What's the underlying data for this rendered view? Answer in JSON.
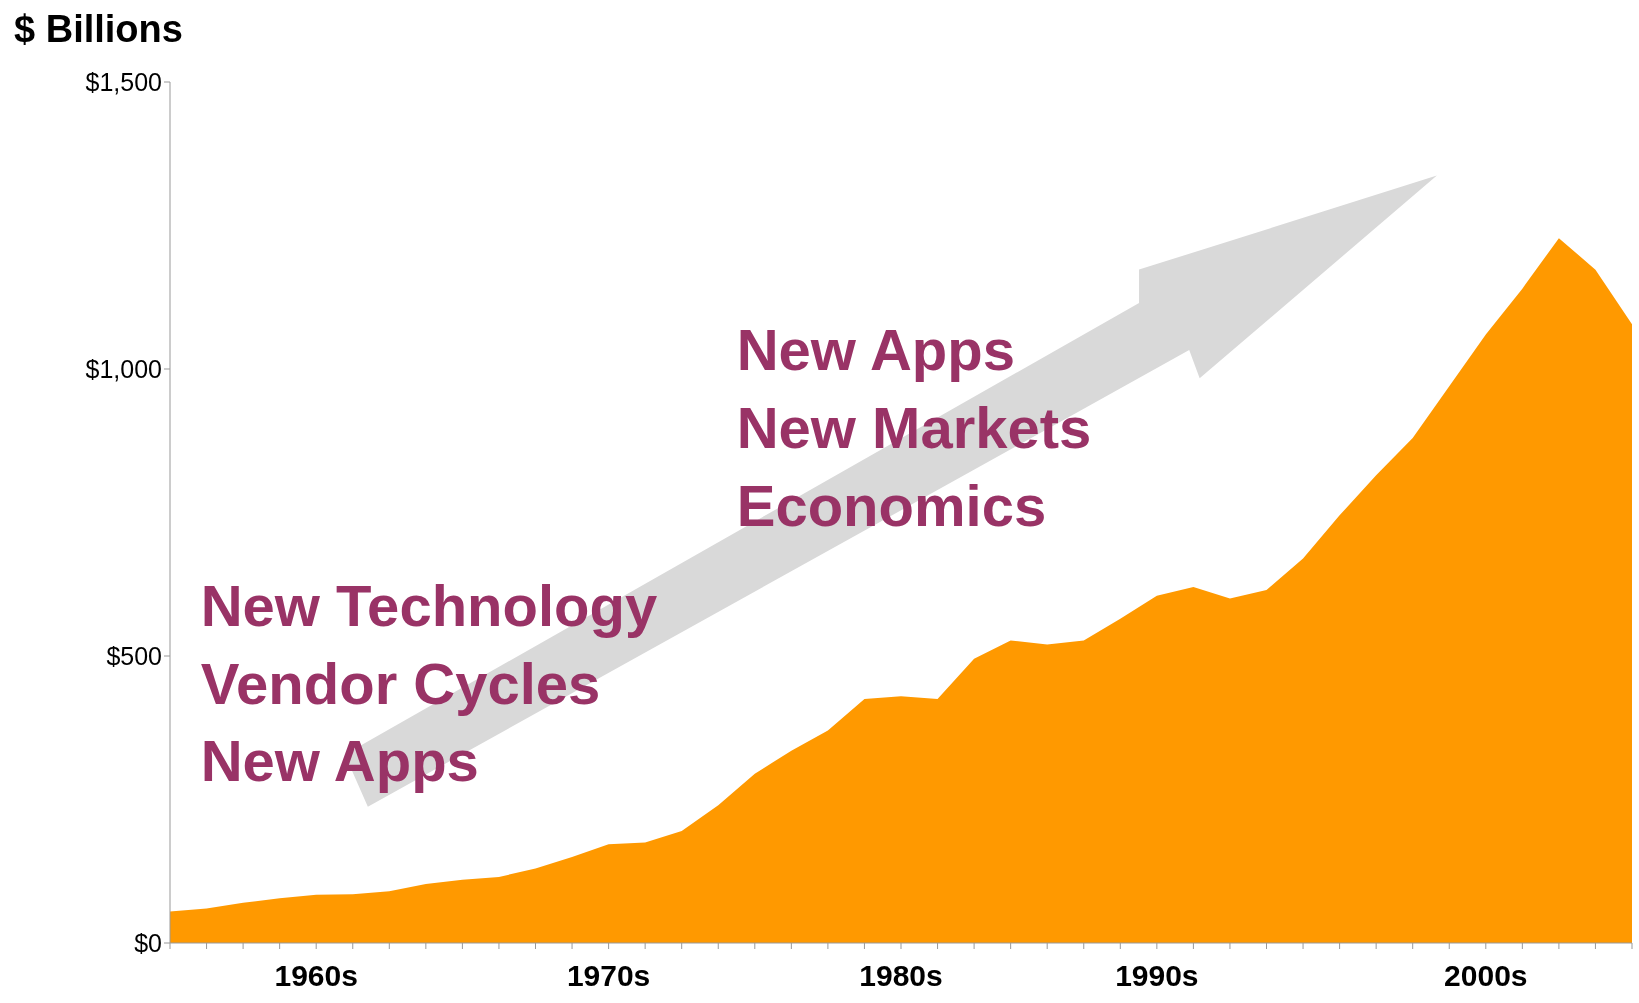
{
  "chart_data": {
    "type": "area",
    "ylabel": "$ Billions",
    "annotations": [
      "New Technology",
      "Vendor Cycles",
      "New Apps",
      "New Apps",
      "New Markets",
      "Economics"
    ],
    "categories": [
      null,
      null,
      null,
      null,
      "1960s",
      null,
      null,
      null,
      null,
      null,
      null,
      null,
      "1970s",
      null,
      null,
      null,
      null,
      null,
      null,
      null,
      "1980s",
      null,
      null,
      null,
      null,
      null,
      null,
      "1990s",
      null,
      null,
      null,
      null,
      null,
      null,
      null,
      null,
      "2000s",
      null,
      null,
      null,
      null
    ],
    "values": [
      55,
      60,
      70,
      78,
      84,
      85,
      90,
      103,
      110,
      115,
      130,
      150,
      172,
      175,
      195,
      240,
      295,
      335,
      370,
      425,
      430,
      425,
      495,
      527,
      520,
      527,
      565,
      605,
      620,
      600,
      615,
      670,
      745,
      815,
      880,
      970,
      1060,
      1140,
      1228,
      1173,
      1078
    ],
    "color": "#ff9900",
    "ylim": [
      0,
      1500
    ],
    "yticks": [
      {
        "value": 0,
        "label": "$0"
      },
      {
        "value": 500,
        "label": "$500"
      },
      {
        "value": 1000,
        "label": "$1,000"
      },
      {
        "value": 1500,
        "label": "$1,500"
      }
    ]
  }
}
